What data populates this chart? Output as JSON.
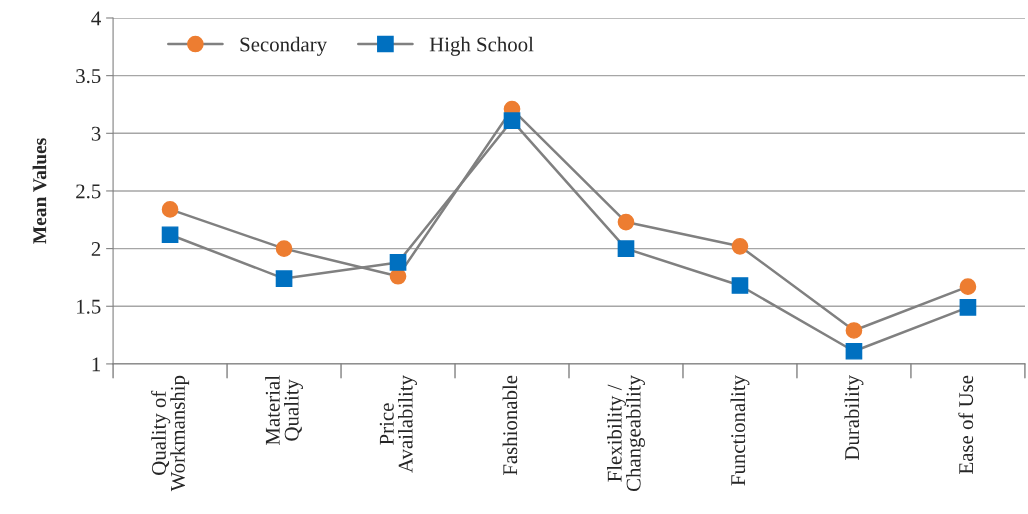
{
  "chart_data": {
    "type": "line",
    "ylabel": "Mean Values",
    "categories": [
      "Quality of\nWorkmanship",
      "Material\nQuality",
      "Price\nAvailability",
      "Fashionable",
      "Flexibility /\nChangeability",
      "Functionality",
      "Durability",
      "Ease of Use"
    ],
    "series": [
      {
        "name": "Secondary",
        "color": "#ed7d31",
        "marker": "circle",
        "values": [
          2.34,
          2.0,
          1.76,
          3.21,
          2.23,
          2.02,
          1.29,
          1.67
        ]
      },
      {
        "name": "High School",
        "color": "#0070c0",
        "marker": "square",
        "values": [
          2.12,
          1.74,
          1.88,
          3.11,
          2.0,
          1.68,
          1.11,
          1.49
        ]
      }
    ],
    "ylim": [
      1,
      4
    ],
    "yticks": [
      1,
      1.5,
      2,
      2.5,
      3,
      3.5,
      4
    ],
    "grid": "y",
    "legend": "top left",
    "line_style": "solid"
  }
}
